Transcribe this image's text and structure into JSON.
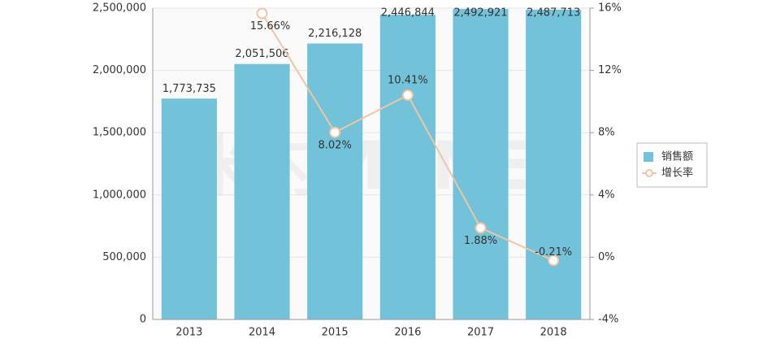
{
  "chart_data": {
    "type": "bar-line",
    "watermark": "米内MENET",
    "categories": [
      "2013",
      "2014",
      "2015",
      "2016",
      "2017",
      "2018"
    ],
    "series": [
      {
        "name": "销售额",
        "type": "bar",
        "color": "#72c2da",
        "axis": "y",
        "values": [
          1773735,
          2051506,
          2216128,
          2446844,
          2492921,
          2487713
        ],
        "value_labels": [
          "1,773,735",
          "2,051,506",
          "2,216,128",
          "2,446,844",
          "2,492,921",
          "2,487,713"
        ]
      },
      {
        "name": "增长率",
        "type": "line",
        "color": "#f2c4a4",
        "axis": "y2",
        "values": [
          null,
          15.66,
          8.02,
          10.41,
          1.88,
          -0.21
        ],
        "value_labels": [
          null,
          "15.66%",
          "8.02%",
          "10.41%",
          "1.88%",
          "-0.21%"
        ]
      }
    ],
    "ylim": [
      0,
      2500000
    ],
    "yticks": [
      0,
      {
        "value": 500000,
        "label": "500,000"
      },
      {
        "value": 1000000,
        "label": "1,000,000"
      },
      {
        "value": 1500000,
        "label": "1,500,000"
      },
      {
        "value": 2000000,
        "label": "2,000,000"
      },
      {
        "value": 2500000,
        "label": "2,500,000"
      }
    ],
    "y2lim": [
      -4,
      16
    ],
    "y2ticks": [
      {
        "value": -4,
        "label": "-4%"
      },
      {
        "value": 0,
        "label": "0%"
      },
      {
        "value": 4,
        "label": "4%"
      },
      {
        "value": 8,
        "label": "8%"
      },
      {
        "value": 12,
        "label": "12%"
      },
      {
        "value": 16,
        "label": "16%"
      }
    ],
    "grid": true,
    "legend": "right"
  }
}
